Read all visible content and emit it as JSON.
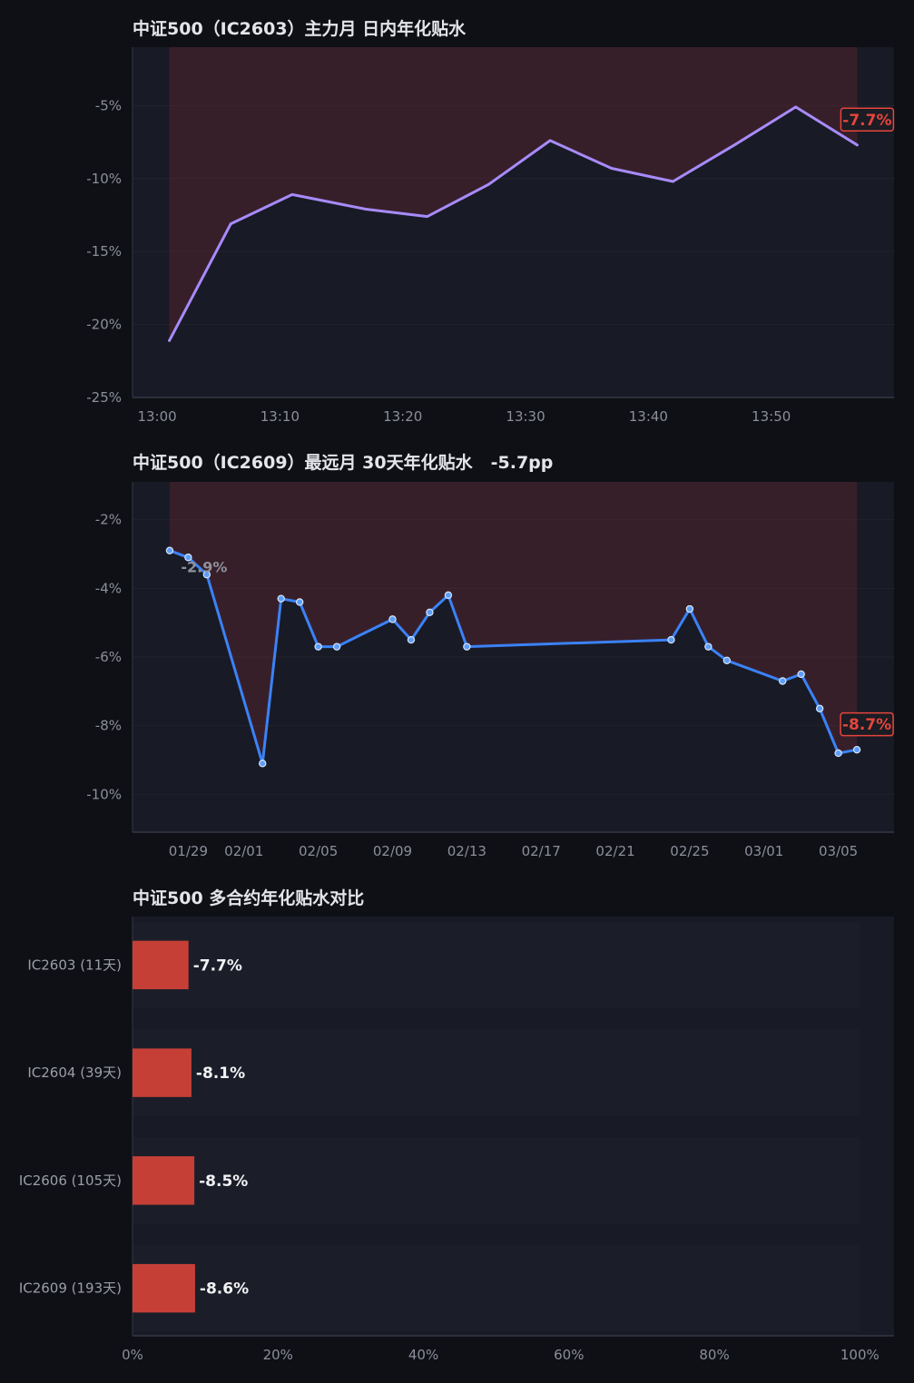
{
  "theme": {
    "page_bg": "#0f1015",
    "plot_bg": "#181a25",
    "grid": "#20232e",
    "axis": "#343846",
    "shade": "#7a2c36",
    "badge": "#e5453c",
    "badge_bg": "#1b1c24",
    "dot_fill": "#5e9ef5",
    "dot_stroke": "#d6e6ff",
    "band": "#1b1e29"
  },
  "chart_data": [
    {
      "type": "line",
      "title": "中证500（IC2603）主力月 日内年化贴水",
      "x": [
        "13:01",
        "13:06",
        "13:11",
        "13:17",
        "13:22",
        "13:27",
        "13:32",
        "13:37",
        "13:42",
        "13:47",
        "13:52",
        "13:57"
      ],
      "series": [
        {
          "values": [
            -21.1,
            -13.1,
            -11.1,
            -12.1,
            -12.6,
            -10.4,
            -7.4,
            -9.3,
            -10.2,
            -7.7,
            -5.1,
            -7.7
          ],
          "color": "#a78bfa"
        }
      ],
      "x_ticks": [
        "13:00",
        "13:10",
        "13:20",
        "13:30",
        "13:40",
        "13:50"
      ],
      "y_ticks": [
        "-5%",
        "-10%",
        "-15%",
        "-20%",
        "-25%"
      ],
      "xlim": [
        "12:58",
        "14:00"
      ],
      "ylim": [
        -25,
        -1
      ],
      "grid": true,
      "markers": false,
      "end_badge": "-7.7%"
    },
    {
      "type": "line",
      "title": "中证500（IC2609）最远月 30天年化贴水",
      "title_change": "-5.7pp",
      "x": [
        "01/28",
        "01/29",
        "01/30",
        "02/02",
        "02/03",
        "02/04",
        "02/05",
        "02/06",
        "02/09",
        "02/10",
        "02/11",
        "02/12",
        "02/13",
        "02/24",
        "02/25",
        "02/26",
        "02/27",
        "03/02",
        "03/03",
        "03/04",
        "03/05",
        "03/06"
      ],
      "series": [
        {
          "values": [
            -2.9,
            -3.1,
            -3.6,
            -9.1,
            -4.3,
            -4.4,
            -5.7,
            -5.7,
            -4.9,
            -5.5,
            -4.7,
            -4.2,
            -5.7,
            -5.5,
            -4.6,
            -5.7,
            -6.1,
            -6.7,
            -6.5,
            -7.5,
            -8.8,
            -8.7
          ],
          "color": "#3b82f6"
        }
      ],
      "x_ticks": [
        "01/29",
        "02/01",
        "02/05",
        "02/09",
        "02/13",
        "02/17",
        "02/21",
        "02/25",
        "03/01",
        "03/05"
      ],
      "y_ticks": [
        "-2%",
        "-4%",
        "-6%",
        "-8%",
        "-10%"
      ],
      "xlim": [
        "01/26",
        "03/08"
      ],
      "ylim": [
        -11.1,
        -0.9
      ],
      "grid": true,
      "markers": true,
      "start_label": "-2.9%",
      "end_badge": "-8.7%"
    },
    {
      "type": "bar",
      "orientation": "horizontal",
      "title": "中证500 多合约年化贴水对比",
      "categories": [
        "IC2603 (11天)",
        "IC2604 (39天)",
        "IC2606 (105天)",
        "IC2609 (193天)"
      ],
      "values": [
        -7.7,
        -8.1,
        -8.5,
        -8.6
      ],
      "value_labels": [
        "-7.7%",
        "-8.1%",
        "-8.5%",
        "-8.6%"
      ],
      "x_ticks": [
        "0%",
        "20%",
        "40%",
        "60%",
        "80%",
        "100%"
      ],
      "xlim": [
        0,
        104.7
      ],
      "color": "#c63f37"
    }
  ]
}
